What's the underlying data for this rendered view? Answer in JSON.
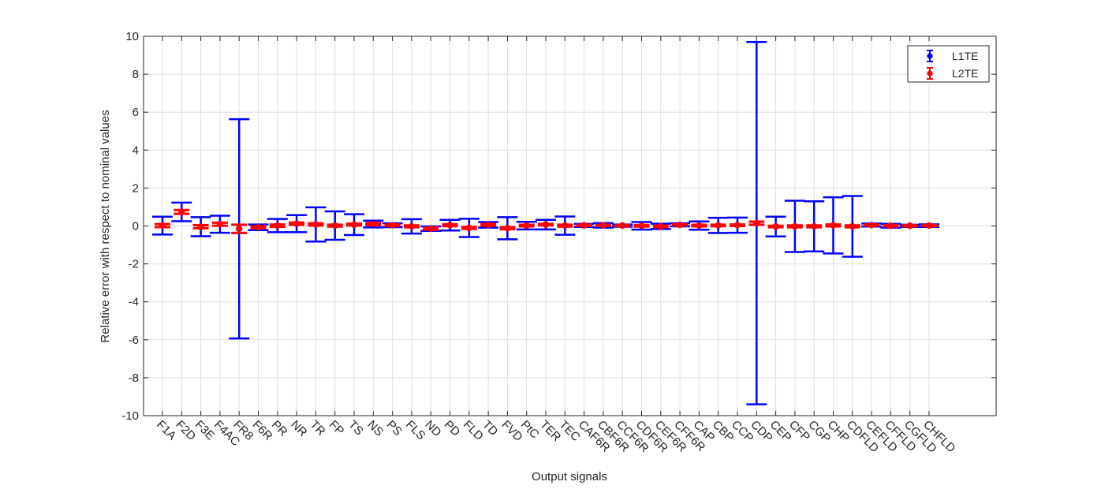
{
  "chart_data": {
    "type": "scatter",
    "xlabel": "Output signals",
    "ylabel": "Relative error with respect to nominal values",
    "ylim": [
      -10,
      10
    ],
    "yticks": [
      -10,
      -8,
      -6,
      -4,
      -2,
      0,
      2,
      4,
      6,
      8,
      10
    ],
    "grid": true,
    "legend_position": "top-right",
    "categories": [
      "F1A",
      "F2D",
      "F3E",
      "F4AC",
      "FR8",
      "F6R",
      "PR",
      "NR",
      "TR",
      "FP",
      "TS",
      "NS",
      "PS",
      "FLS",
      "ND",
      "PD",
      "FLD",
      "TD",
      "FVD",
      "PtC",
      "TER",
      "TEC",
      "CAF6R",
      "CBF6R",
      "CCF6R",
      "CDF6R",
      "CEF6R",
      "CFF6R",
      "CAP",
      "CBP",
      "CCP",
      "CDP",
      "CEP",
      "CFP",
      "CGP",
      "CHP",
      "CDFLD",
      "CEFLD",
      "CFFLD",
      "CGFLD",
      "CHFLD"
    ],
    "series": [
      {
        "name": "L1TE",
        "color": "#0000ff",
        "y": [
          0.02,
          0.74,
          -0.04,
          0.09,
          -0.15,
          -0.07,
          0.02,
          0.12,
          0.08,
          0.02,
          0.07,
          0.1,
          0.04,
          -0.02,
          -0.14,
          0.04,
          -0.1,
          0.06,
          -0.12,
          0.02,
          0.07,
          0.02,
          0.03,
          0.03,
          0.02,
          0.01,
          -0.02,
          0.06,
          0.02,
          0.03,
          0.04,
          0.15,
          -0.03,
          -0.02,
          -0.02,
          0.03,
          -0.02,
          0.05,
          0.01,
          0.01,
          0.02
        ],
        "err": [
          0.47,
          0.49,
          0.5,
          0.45,
          5.78,
          0.15,
          0.35,
          0.45,
          0.9,
          0.75,
          0.55,
          0.18,
          0.1,
          0.38,
          0.12,
          0.28,
          0.48,
          0.15,
          0.58,
          0.2,
          0.25,
          0.48,
          0.08,
          0.12,
          0.06,
          0.2,
          0.14,
          0.08,
          0.22,
          0.4,
          0.4,
          9.55,
          0.52,
          1.35,
          1.32,
          1.48,
          1.6,
          0.08,
          0.1,
          0.06,
          0.07
        ]
      },
      {
        "name": "L2TE",
        "color": "#ff0000",
        "y": [
          0.02,
          0.74,
          -0.04,
          0.09,
          -0.15,
          -0.07,
          0.02,
          0.12,
          0.08,
          0.02,
          0.07,
          0.1,
          0.04,
          -0.02,
          -0.14,
          0.04,
          -0.1,
          0.06,
          -0.12,
          0.02,
          0.07,
          0.02,
          0.03,
          0.03,
          0.02,
          0.01,
          -0.02,
          0.06,
          0.02,
          0.03,
          0.04,
          0.15,
          -0.03,
          -0.02,
          -0.02,
          0.03,
          -0.02,
          0.05,
          0.01,
          0.01,
          0.02
        ],
        "err": [
          0.08,
          0.1,
          0.08,
          0.08,
          0.22,
          0.05,
          0.06,
          0.06,
          0.06,
          0.05,
          0.05,
          0.06,
          0.04,
          0.05,
          0.06,
          0.05,
          0.05,
          0.05,
          0.05,
          0.04,
          0.04,
          0.05,
          0.03,
          0.03,
          0.03,
          0.04,
          0.04,
          0.03,
          0.04,
          0.04,
          0.04,
          0.08,
          0.04,
          0.05,
          0.05,
          0.05,
          0.05,
          0.03,
          0.03,
          0.03,
          0.03
        ]
      }
    ]
  }
}
